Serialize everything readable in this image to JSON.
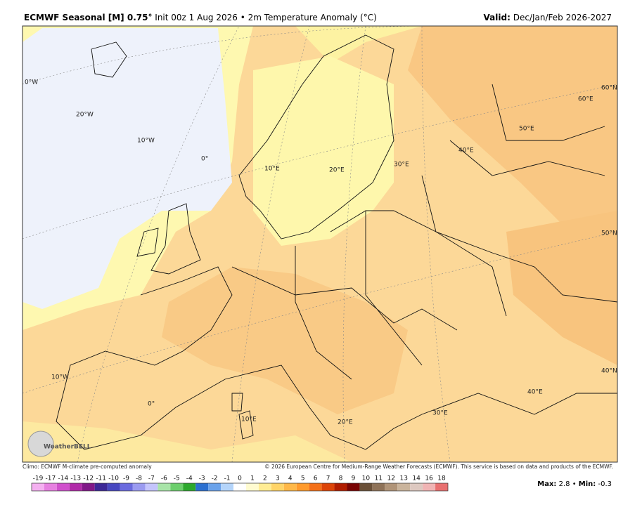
{
  "header": {
    "title_bold": "ECMWF Seasonal [M] 0.75°",
    "title_rest": "Init 00z 1 Aug 2026 • 2m Temperature Anomaly (°C)",
    "valid_label": "Valid:",
    "valid_value": "Dec/Jan/Feb 2026-2027"
  },
  "map": {
    "labels": [
      "0°W",
      "20°W",
      "10°W",
      "0°",
      "10°E",
      "20°E",
      "30°E",
      "40°E",
      "50°E",
      "60°E",
      "60°N",
      "50°N",
      "40°N",
      "10°W",
      "0°",
      "10°E",
      "20°E",
      "30°E",
      "40°E"
    ],
    "watermark": "WeatherBELL"
  },
  "footer": {
    "climo": "Climo: ECMWF M-climate pre-computed anomaly",
    "copyright": "© 2026 European Centre for Medium-Range Weather Forecasts (ECMWF). This service is based on data and products of the ECMWF."
  },
  "colorbar": {
    "labels": [
      -19,
      -17,
      -14,
      -13,
      -12,
      -11,
      -10,
      -9,
      -8,
      -7,
      -6,
      -5,
      -4,
      -3,
      -2,
      -1,
      0,
      1,
      2,
      3,
      4,
      5,
      6,
      7,
      8,
      9,
      10,
      11,
      12,
      13,
      14,
      16,
      18
    ],
    "colors": [
      "#f4b0f0",
      "#e680e0",
      "#d050cc",
      "#b02aa8",
      "#801888",
      "#3c2896",
      "#4848c0",
      "#6a6ade",
      "#9a9af0",
      "#c4c4fc",
      "#a8e4a8",
      "#6cce6c",
      "#2ca82c",
      "#2c70d0",
      "#6aa2ea",
      "#b4d4fa",
      "#ffffff",
      "#fffbd0",
      "#ffec94",
      "#ffd468",
      "#ffb848",
      "#ff9a2c",
      "#f47018",
      "#dc4408",
      "#b01c00",
      "#780404",
      "#6a5038",
      "#8e7258",
      "#b09478",
      "#cab49c",
      "#ddc8c0",
      "#f0b4b4",
      "#e87070"
    ]
  },
  "stats": {
    "max_label": "Max:",
    "max": 2.8,
    "min_label": "Min:",
    "min": -0.3
  }
}
